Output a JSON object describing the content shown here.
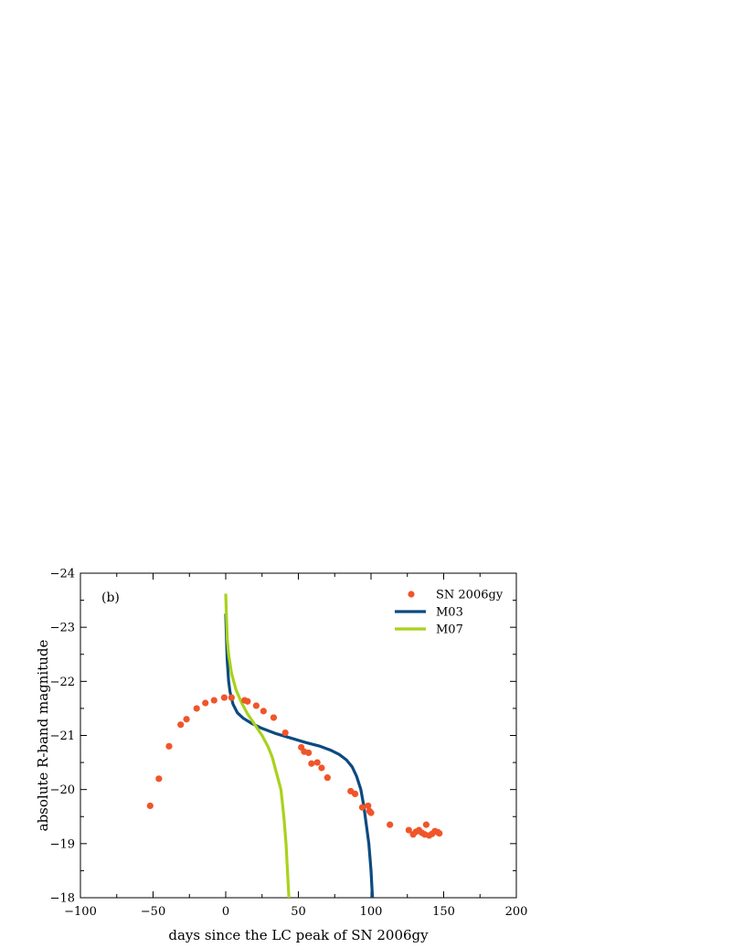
{
  "chart_data": {
    "type": "scatter",
    "panel_label": "(b)",
    "xlabel": "days since the LC peak of SN 2006gy",
    "ylabel": "absolute R-band magnitude",
    "xlim": [
      -100,
      200
    ],
    "ylim": [
      -24,
      -18
    ],
    "y_inverted": true,
    "xticks": [
      -100,
      -50,
      0,
      50,
      100,
      150,
      200
    ],
    "yticks": [
      -24,
      -23,
      -22,
      -21,
      -20,
      -19,
      -18
    ],
    "grid": false,
    "legend_position": "top-right",
    "series": [
      {
        "name": "SN 2006gy",
        "kind": "scatter",
        "color": "#f0552a",
        "points": [
          [
            -52,
            -19.7
          ],
          [
            -46,
            -20.2
          ],
          [
            -39,
            -20.8
          ],
          [
            -31,
            -21.2
          ],
          [
            -27,
            -21.3
          ],
          [
            -20,
            -21.5
          ],
          [
            -14,
            -21.6
          ],
          [
            -8,
            -21.65
          ],
          [
            -1,
            -21.7
          ],
          [
            4,
            -21.7
          ],
          [
            13,
            -21.65
          ],
          [
            15,
            -21.63
          ],
          [
            21,
            -21.55
          ],
          [
            26,
            -21.45
          ],
          [
            33,
            -21.33
          ],
          [
            41,
            -21.05
          ],
          [
            52,
            -20.78
          ],
          [
            54,
            -20.7
          ],
          [
            57,
            -20.68
          ],
          [
            59,
            -20.48
          ],
          [
            63,
            -20.5
          ],
          [
            66,
            -20.4
          ],
          [
            70,
            -20.22
          ],
          [
            86,
            -19.97
          ],
          [
            89,
            -19.92
          ],
          [
            94,
            -19.67
          ],
          [
            98,
            -19.7
          ],
          [
            99,
            -19.6
          ],
          [
            100,
            -19.57
          ],
          [
            113,
            -19.35
          ],
          [
            126,
            -19.25
          ],
          [
            129,
            -19.17
          ],
          [
            131,
            -19.22
          ],
          [
            133,
            -19.25
          ],
          [
            135,
            -19.2
          ],
          [
            137,
            -19.17
          ],
          [
            138,
            -19.35
          ],
          [
            140,
            -19.15
          ],
          [
            142,
            -19.18
          ],
          [
            144,
            -19.23
          ],
          [
            146,
            -19.21
          ],
          [
            147,
            -19.19
          ]
        ]
      },
      {
        "name": "M03",
        "kind": "line",
        "color": "#0c4a80",
        "points": [
          [
            0,
            -23.25
          ],
          [
            0.5,
            -22.8
          ],
          [
            1,
            -22.4
          ],
          [
            2,
            -22.0
          ],
          [
            3,
            -21.8
          ],
          [
            5,
            -21.58
          ],
          [
            8,
            -21.42
          ],
          [
            12,
            -21.32
          ],
          [
            18,
            -21.22
          ],
          [
            25,
            -21.13
          ],
          [
            35,
            -21.03
          ],
          [
            45,
            -20.95
          ],
          [
            55,
            -20.87
          ],
          [
            65,
            -20.8
          ],
          [
            72,
            -20.73
          ],
          [
            78,
            -20.65
          ],
          [
            83,
            -20.55
          ],
          [
            87,
            -20.42
          ],
          [
            90,
            -20.25
          ],
          [
            93,
            -20.0
          ],
          [
            95,
            -19.7
          ],
          [
            97,
            -19.3
          ],
          [
            98.5,
            -19.0
          ],
          [
            100,
            -18.5
          ],
          [
            101,
            -18.0
          ]
        ]
      },
      {
        "name": "M07",
        "kind": "line",
        "color": "#a9d21b",
        "points": [
          [
            0,
            -23.62
          ],
          [
            0.5,
            -23.2
          ],
          [
            1,
            -22.8
          ],
          [
            2,
            -22.5
          ],
          [
            4,
            -22.15
          ],
          [
            7,
            -21.85
          ],
          [
            11,
            -21.6
          ],
          [
            15,
            -21.4
          ],
          [
            20,
            -21.2
          ],
          [
            25,
            -21.0
          ],
          [
            29,
            -20.8
          ],
          [
            32,
            -20.6
          ],
          [
            35,
            -20.3
          ],
          [
            38,
            -20.0
          ],
          [
            40,
            -19.5
          ],
          [
            41.5,
            -19.0
          ],
          [
            42.5,
            -18.5
          ],
          [
            43.5,
            -18.0
          ]
        ]
      }
    ]
  }
}
